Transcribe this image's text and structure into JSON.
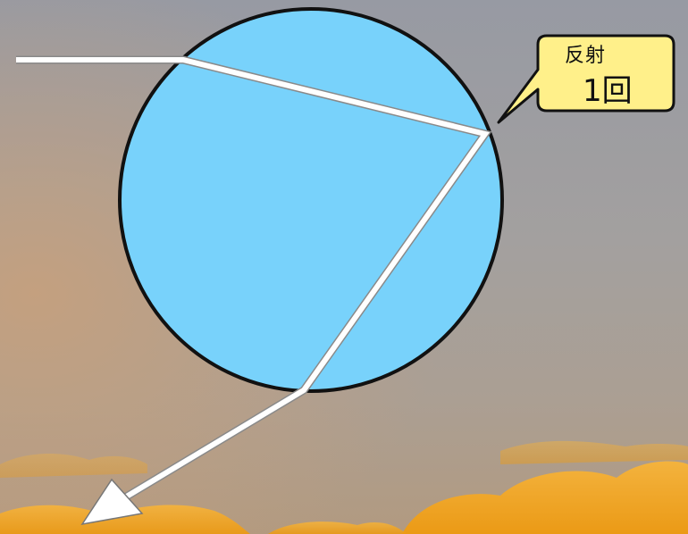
{
  "callout": {
    "line1": "反射",
    "line2": "1回"
  },
  "colors": {
    "sky_top": "#9a9aa0",
    "sky_bottom": "#a8a09a",
    "cloud_orange": "#f3a21c",
    "droplet_fill": "#78d2fb",
    "droplet_stroke": "#111111",
    "ray": "#ffffff",
    "callout_fill": "#ffef86"
  },
  "icons": [
    "arrow-head-icon"
  ]
}
